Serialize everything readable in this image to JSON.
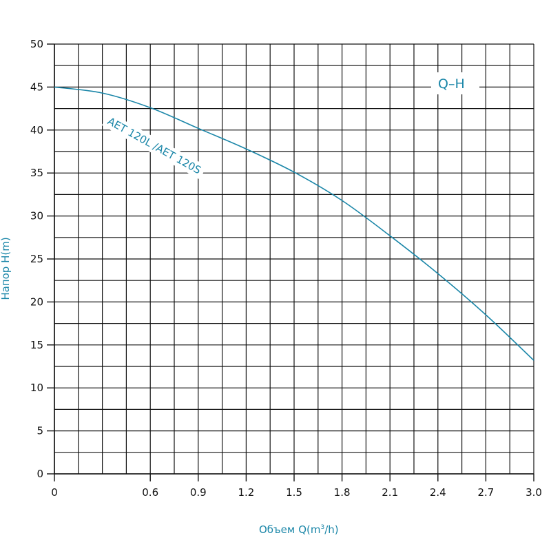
{
  "chart_data": {
    "type": "line",
    "title": "",
    "xlabel_main": "Объем",
    "xlabel_unit_pre": "Q(m",
    "xlabel_unit_sup": "3",
    "xlabel_unit_post": "/h)",
    "ylabel": "Напор Н(m)",
    "annotation": "Q–H",
    "xlim": [
      0,
      3.0
    ],
    "ylim": [
      0,
      50
    ],
    "x_ticks": [
      0,
      0.6,
      0.9,
      1.2,
      1.5,
      1.8,
      2.1,
      2.4,
      2.7,
      3.0
    ],
    "x_tick_labels": [
      "0",
      "0.6",
      "0.9",
      "1.2",
      "1.5",
      "1.8",
      "2.1",
      "2.4",
      "2.7",
      "3.0"
    ],
    "y_ticks": [
      0,
      5,
      10,
      15,
      20,
      25,
      30,
      35,
      40,
      45,
      50
    ],
    "y_tick_labels": [
      "0",
      "5",
      "10",
      "15",
      "20",
      "25",
      "30",
      "35",
      "40",
      "45",
      "50"
    ],
    "grid": true,
    "series": [
      {
        "name": "AET 120L /AET 120S",
        "color": "#1a86a8",
        "x": [
          0,
          0.3,
          0.6,
          0.9,
          1.2,
          1.5,
          1.8,
          2.1,
          2.4,
          2.7,
          3.0
        ],
        "y": [
          45.0,
          44.3,
          42.6,
          40.2,
          37.8,
          35.1,
          31.8,
          27.7,
          23.3,
          18.5,
          13.2
        ]
      }
    ]
  }
}
